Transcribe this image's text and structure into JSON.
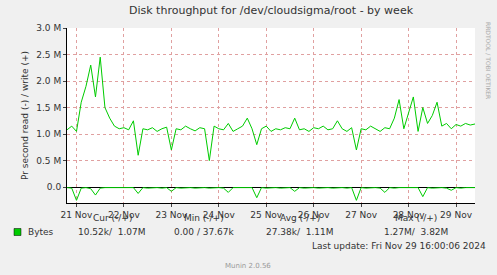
{
  "chart_data": {
    "type": "line",
    "title": "Disk throughput for /dev/cloudsigma/root - by week",
    "y_label": "Pr second read (-) / write (+)",
    "x": [
      20.8,
      20.9,
      21.0,
      21.1,
      21.2,
      21.3,
      21.4,
      21.5,
      21.6,
      21.7,
      21.8,
      21.9,
      22.0,
      22.1,
      22.2,
      22.3,
      22.4,
      22.5,
      22.6,
      22.7,
      22.8,
      22.9,
      23.0,
      23.1,
      23.2,
      23.3,
      23.4,
      23.5,
      23.6,
      23.7,
      23.8,
      23.9,
      24.0,
      24.1,
      24.2,
      24.3,
      24.4,
      24.5,
      24.6,
      24.7,
      24.8,
      24.9,
      25.0,
      25.1,
      25.2,
      25.3,
      25.4,
      25.5,
      25.6,
      25.7,
      25.8,
      25.9,
      26.0,
      26.1,
      26.2,
      26.3,
      26.4,
      26.5,
      26.6,
      26.7,
      26.8,
      26.9,
      27.0,
      27.1,
      27.2,
      27.3,
      27.4,
      27.5,
      27.6,
      27.7,
      27.8,
      27.9,
      28.0,
      28.1,
      28.2,
      28.3,
      28.4,
      28.5,
      28.6,
      28.7,
      28.8,
      28.9,
      29.0,
      29.1,
      29.2,
      29.3,
      29.4
    ],
    "series": [
      {
        "name": "Bytes",
        "color": "#00cc00",
        "values": [
          1080000,
          1150000,
          1050000,
          1600000,
          1900000,
          2300000,
          1700000,
          2450000,
          1500000,
          1300000,
          1150000,
          1100000,
          1120000,
          1080000,
          1250000,
          600000,
          1100000,
          1080000,
          1120000,
          1050000,
          1100000,
          1130000,
          700000,
          1100000,
          1080000,
          1150000,
          1100000,
          1060000,
          1120000,
          1100000,
          500000,
          1150000,
          1100000,
          1080000,
          1200000,
          1050000,
          1100000,
          1150000,
          1300000,
          1100000,
          800000,
          1100000,
          1150000,
          1050000,
          1100000,
          1080000,
          1120000,
          1100000,
          1300000,
          1080000,
          1100000,
          1050000,
          1120000,
          1100000,
          1150000,
          1080000,
          1100000,
          1250000,
          1100000,
          1050000,
          1120000,
          700000,
          1100000,
          1080000,
          1150000,
          1100000,
          1050000,
          1120000,
          1100000,
          1300000,
          1650000,
          1100000,
          1400000,
          1700000,
          1050000,
          1500000,
          1200000,
          1350000,
          1600000,
          1150000,
          1200000,
          1100000,
          1180000,
          1150000,
          1200000,
          1170000,
          1190000
        ],
        "read_values": [
          -10000,
          -20000,
          -250000,
          -20000,
          -10000,
          -30000,
          -150000,
          -20000,
          -10000,
          -10000,
          -20000,
          -10000,
          -10000,
          -20000,
          -10000,
          -120000,
          -10000,
          -20000,
          -10000,
          -10000,
          -20000,
          -10000,
          -80000,
          -10000,
          -20000,
          -10000,
          -10000,
          -20000,
          -10000,
          -10000,
          -20000,
          -10000,
          -10000,
          -20000,
          -100000,
          -10000,
          -10000,
          -20000,
          -10000,
          -10000,
          -200000,
          -10000,
          -20000,
          -10000,
          -10000,
          -20000,
          -10000,
          -10000,
          -80000,
          -10000,
          -20000,
          -10000,
          -10000,
          -20000,
          -10000,
          -10000,
          -20000,
          -10000,
          -10000,
          -20000,
          -10000,
          -250000,
          -10000,
          -20000,
          -10000,
          -10000,
          -20000,
          -100000,
          -10000,
          -20000,
          -10000,
          -10000,
          -20000,
          -10000,
          -10000,
          -180000,
          -10000,
          -20000,
          -10000,
          -10000,
          -20000,
          -60000,
          -10000,
          -20000,
          -10000,
          -10000,
          -10000
        ]
      }
    ],
    "xlim": [
      20.8,
      29.4
    ],
    "xticks": [
      {
        "value": 21,
        "label": "21 Nov"
      },
      {
        "value": 22,
        "label": "22 Nov"
      },
      {
        "value": 23,
        "label": "23 Nov"
      },
      {
        "value": 24,
        "label": "24 Nov"
      },
      {
        "value": 25,
        "label": "25 Nov"
      },
      {
        "value": 26,
        "label": "26 Nov"
      },
      {
        "value": 27,
        "label": "27 Nov"
      },
      {
        "value": 28,
        "label": "28 Nov"
      },
      {
        "value": 29,
        "label": "29 Nov"
      }
    ],
    "ylim": [
      -300000,
      3000000
    ],
    "yticks": [
      {
        "value": 0,
        "label": "0.0"
      },
      {
        "value": 500000,
        "label": "0.5 M"
      },
      {
        "value": 1000000,
        "label": "1.0 M"
      },
      {
        "value": 1500000,
        "label": "1.5 M"
      },
      {
        "value": 2000000,
        "label": "2.0 M"
      },
      {
        "value": 2500000,
        "label": "2.5 M"
      },
      {
        "value": 3000000,
        "label": "3.0 M"
      }
    ],
    "grid": true,
    "legend_table": {
      "columns": [
        "Cur (-/+)",
        "Min (-/+)",
        "Avg (-/+)",
        "Max (-/+)"
      ],
      "rows": [
        {
          "label": "Bytes",
          "cells": [
            "10.52k/  1.07M",
            "0.00 / 37.67k",
            "27.38k/  1.11M",
            "1.27M/  3.82M"
          ]
        }
      ]
    },
    "last_update": "Last update: Fri Nov 29 16:00:06 2024",
    "credit": "Munin 2.0.56",
    "watermark": "RRDTOOL / TOBI OETIKER"
  }
}
